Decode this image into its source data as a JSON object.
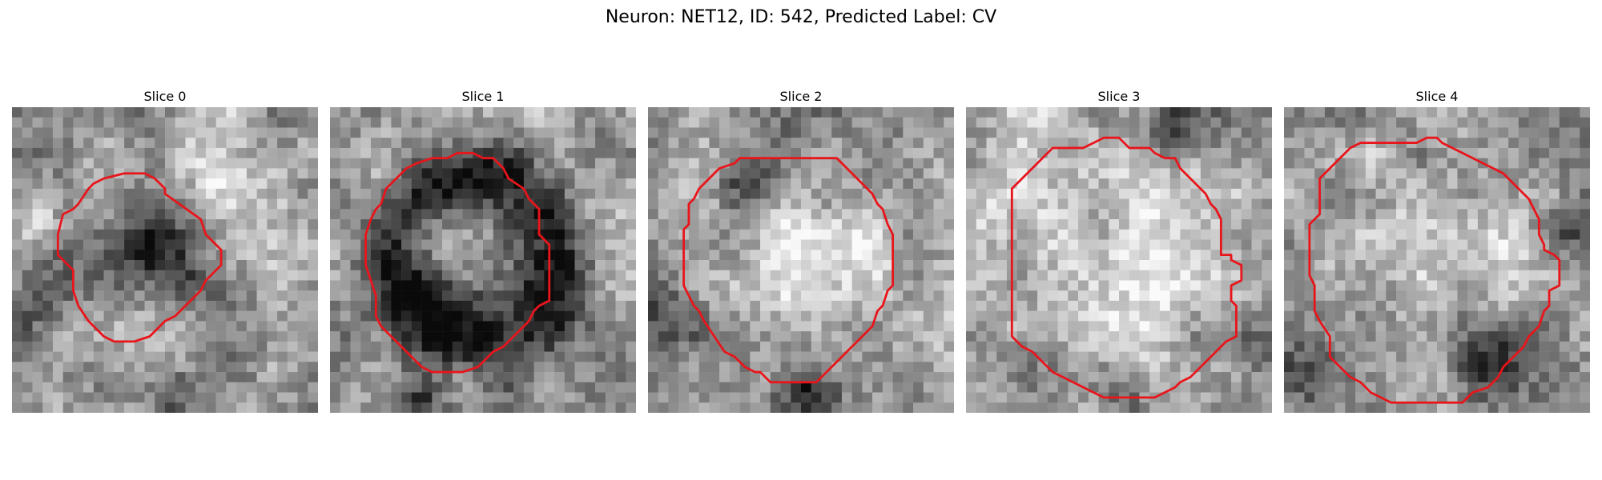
{
  "figure": {
    "title": "Neuron: NET12, ID: 542, Predicted Label: CV"
  },
  "panels": [
    {
      "title": "Slice 0",
      "contour_color": "#e8151b",
      "contour": [
        [
          15,
          8.5
        ],
        [
          18.5,
          11
        ],
        [
          19,
          12.5
        ],
        [
          20.5,
          14
        ],
        [
          20.5,
          15.5
        ],
        [
          19,
          17
        ],
        [
          18.5,
          18
        ],
        [
          17,
          19.5
        ],
        [
          16,
          20.5
        ],
        [
          15,
          21
        ],
        [
          13.5,
          22.5
        ],
        [
          12,
          23
        ],
        [
          10,
          23
        ],
        [
          9,
          22.5
        ],
        [
          8.5,
          22
        ],
        [
          7.5,
          21
        ],
        [
          6.5,
          19.5
        ],
        [
          6,
          18
        ],
        [
          6,
          16
        ],
        [
          5,
          15
        ],
        [
          4.5,
          14.5
        ],
        [
          4.5,
          12.5
        ],
        [
          5,
          10.5
        ],
        [
          6,
          10
        ],
        [
          6.5,
          9.5
        ],
        [
          7.5,
          8
        ],
        [
          8,
          7.5
        ],
        [
          9,
          7
        ],
        [
          11,
          6.5
        ],
        [
          13,
          6.5
        ],
        [
          14,
          7
        ],
        [
          15,
          8
        ]
      ],
      "texture": {
        "seed": 11,
        "dark_spots": [
          [
            13,
            14,
            3.6,
            0.42
          ]
        ],
        "light_spots": [
          [
            19,
            6,
            3,
            0.3
          ],
          [
            2,
            11,
            1.4,
            0.35
          ]
        ],
        "edge_dark": [
          [
            0,
            19,
            3,
            0.35
          ],
          [
            15,
            28,
            2,
            0.25
          ]
        ]
      }
    },
    {
      "title": "Slice 1",
      "contour_color": "#e8151b",
      "contour": [
        [
          13,
          4.5
        ],
        [
          14,
          4.5
        ],
        [
          15,
          5
        ],
        [
          16,
          5
        ],
        [
          17,
          6
        ],
        [
          17.5,
          7
        ],
        [
          19,
          8
        ],
        [
          19.5,
          9
        ],
        [
          20.5,
          10
        ],
        [
          20.5,
          12.5
        ],
        [
          21.5,
          13.5
        ],
        [
          21.5,
          19
        ],
        [
          20.5,
          19.5
        ],
        [
          20,
          20
        ],
        [
          19.5,
          21
        ],
        [
          18.5,
          22
        ],
        [
          17,
          23.5
        ],
        [
          16,
          24
        ],
        [
          15,
          25
        ],
        [
          14.5,
          25.5
        ],
        [
          13,
          26
        ],
        [
          12,
          26
        ],
        [
          10,
          26
        ],
        [
          9,
          25.5
        ],
        [
          8,
          24.5
        ],
        [
          7.5,
          24
        ],
        [
          6,
          22.5
        ],
        [
          5,
          21.5
        ],
        [
          4.5,
          20.5
        ],
        [
          4.5,
          18.5
        ],
        [
          4,
          17
        ],
        [
          3.5,
          15.5
        ],
        [
          3.5,
          12.5
        ],
        [
          4,
          11
        ],
        [
          4.5,
          10
        ],
        [
          5,
          9.5
        ],
        [
          5.5,
          8
        ],
        [
          6.5,
          7
        ],
        [
          7.5,
          6
        ],
        [
          8.5,
          5.5
        ],
        [
          10,
          5
        ],
        [
          11.5,
          5
        ],
        [
          12.5,
          4.5
        ]
      ],
      "texture": {
        "seed": 23,
        "ring": [
          14,
          14.5,
          8,
          2.4,
          0.45
        ],
        "dark_spots": [
          [
            12,
            19,
            3.5,
            0.35
          ]
        ],
        "light_spots": [
          [
            12,
            12,
            3,
            0.2
          ]
        ],
        "edge_dark": [
          [
            8,
            28,
            2,
            0.3
          ]
        ]
      }
    },
    {
      "title": "Slice 2",
      "contour_color": "#e8151b",
      "contour": [
        [
          18.5,
          5
        ],
        [
          19.5,
          6
        ],
        [
          20.5,
          7
        ],
        [
          22,
          8.5
        ],
        [
          22.5,
          9.5
        ],
        [
          23,
          10
        ],
        [
          23.5,
          11.5
        ],
        [
          24,
          12.5
        ],
        [
          24,
          17.5
        ],
        [
          23.5,
          18
        ],
        [
          23,
          19.5
        ],
        [
          22.5,
          20
        ],
        [
          22,
          21.5
        ],
        [
          21,
          22.5
        ],
        [
          20,
          23.5
        ],
        [
          19,
          24.5
        ],
        [
          18,
          25.5
        ],
        [
          17,
          26.5
        ],
        [
          16.5,
          27
        ],
        [
          12,
          27
        ],
        [
          11,
          26
        ],
        [
          10.5,
          26
        ],
        [
          9.5,
          25.5
        ],
        [
          8.5,
          24.5
        ],
        [
          7.5,
          24
        ],
        [
          6.5,
          22.5
        ],
        [
          5.5,
          21
        ],
        [
          5,
          20
        ],
        [
          4.5,
          19.5
        ],
        [
          4,
          18.5
        ],
        [
          3.5,
          17.5
        ],
        [
          3.5,
          12
        ],
        [
          4,
          11.5
        ],
        [
          4,
          9.5
        ],
        [
          4.5,
          9
        ],
        [
          5,
          8
        ],
        [
          6,
          7
        ],
        [
          7,
          6
        ],
        [
          8.5,
          5.5
        ],
        [
          9,
          5
        ],
        [
          10,
          5
        ]
      ],
      "texture": {
        "seed": 37,
        "dark_spots": [
          [
            15,
            27,
            2.2,
            0.55
          ],
          [
            9,
            7,
            2,
            0.35
          ]
        ],
        "light_spots": [
          [
            17,
            14,
            5,
            0.28
          ]
        ],
        "edge_dark": [
          [
            0,
            20,
            3,
            0.2
          ]
        ]
      }
    },
    {
      "title": "Slice 3",
      "contour_color": "#e8151b",
      "contour": [
        [
          14,
          3
        ],
        [
          15,
          3
        ],
        [
          15.5,
          3.5
        ],
        [
          16,
          4
        ],
        [
          18,
          4
        ],
        [
          18.5,
          4.5
        ],
        [
          19.5,
          5
        ],
        [
          20.5,
          5
        ],
        [
          21,
          6
        ],
        [
          22,
          7
        ],
        [
          23.5,
          8.5
        ],
        [
          24,
          9.5
        ],
        [
          24.5,
          10
        ],
        [
          25,
          11
        ],
        [
          25,
          14.5
        ],
        [
          26,
          14.5
        ],
        [
          26,
          15
        ],
        [
          27,
          15.5
        ],
        [
          27,
          17
        ],
        [
          26,
          17.5
        ],
        [
          26,
          19
        ],
        [
          26.5,
          19.5
        ],
        [
          26.5,
          20.5
        ],
        [
          26.5,
          22.5
        ],
        [
          25.5,
          23
        ],
        [
          25,
          23.5
        ],
        [
          24.5,
          24
        ],
        [
          24,
          24.5
        ],
        [
          23.5,
          25
        ],
        [
          22.5,
          26
        ],
        [
          22,
          26.5
        ],
        [
          21,
          27
        ],
        [
          20.5,
          27.5
        ],
        [
          19.5,
          28
        ],
        [
          18.5,
          28.5
        ],
        [
          13.5,
          28.5
        ],
        [
          12.5,
          28
        ],
        [
          11.5,
          27.5
        ],
        [
          10.5,
          27
        ],
        [
          9.5,
          26.5
        ],
        [
          8.5,
          26
        ],
        [
          7.5,
          25
        ],
        [
          6.5,
          24
        ],
        [
          5.5,
          23.5
        ],
        [
          4.5,
          22.5
        ],
        [
          4.5,
          20.5
        ],
        [
          4.5,
          15.5
        ],
        [
          4.5,
          12
        ],
        [
          4.5,
          8
        ],
        [
          5.5,
          7
        ],
        [
          6.5,
          6
        ],
        [
          7.5,
          5
        ],
        [
          8.5,
          4
        ],
        [
          11.5,
          4
        ],
        [
          12.5,
          3.5
        ],
        [
          13.5,
          3
        ]
      ],
      "texture": {
        "seed": 41,
        "dark_spots": [
          [
            20,
            2,
            2.2,
            0.45
          ],
          [
            15,
            28,
            2,
            0.35
          ]
        ],
        "light_spots": [
          [
            14,
            14,
            7,
            0.25
          ]
        ],
        "edge_dark": [
          [
            29,
            22,
            2.5,
            0.3
          ]
        ]
      }
    },
    {
      "title": "Slice 4",
      "contour_color": "#e8151b",
      "contour": [
        [
          14.5,
          3
        ],
        [
          15,
          3
        ],
        [
          15.5,
          3.5
        ],
        [
          16.5,
          4
        ],
        [
          17.5,
          4.5
        ],
        [
          18.5,
          5
        ],
        [
          19.5,
          5.5
        ],
        [
          21.5,
          6.5
        ],
        [
          22.5,
          7.5
        ],
        [
          23.5,
          8.5
        ],
        [
          24,
          9
        ],
        [
          24.5,
          10
        ],
        [
          25,
          11
        ],
        [
          25,
          12.5
        ],
        [
          25.5,
          13.5
        ],
        [
          25.5,
          14
        ],
        [
          26.5,
          14.5
        ],
        [
          27,
          15
        ],
        [
          27,
          17.5
        ],
        [
          26,
          18
        ],
        [
          26,
          19.5
        ],
        [
          25.5,
          20
        ],
        [
          25,
          21.5
        ],
        [
          24,
          22.5
        ],
        [
          23.5,
          23.5
        ],
        [
          22.5,
          24.5
        ],
        [
          21.5,
          25.5
        ],
        [
          21,
          26.5
        ],
        [
          20,
          27.5
        ],
        [
          18.5,
          28
        ],
        [
          17.5,
          29
        ],
        [
          10.5,
          29
        ],
        [
          9.5,
          28.5
        ],
        [
          8.5,
          28
        ],
        [
          7.5,
          27
        ],
        [
          6.5,
          26.5
        ],
        [
          5.5,
          25.5
        ],
        [
          4.5,
          24.5
        ],
        [
          4.5,
          22.5
        ],
        [
          3.5,
          21
        ],
        [
          3,
          20
        ],
        [
          3,
          17.5
        ],
        [
          2.5,
          16.5
        ],
        [
          2.5,
          11.5
        ],
        [
          3.5,
          10.5
        ],
        [
          3.5,
          7
        ],
        [
          4.5,
          6
        ],
        [
          5.5,
          5
        ],
        [
          6.5,
          4
        ],
        [
          7.5,
          3.5
        ],
        [
          13,
          3.5
        ],
        [
          14,
          3
        ]
      ],
      "texture": {
        "seed": 53,
        "dark_spots": [
          [
            20,
            25,
            2.5,
            0.55
          ],
          [
            27,
            11,
            2,
            0.35
          ]
        ],
        "light_spots": [
          [
            15,
            14,
            6,
            0.22
          ]
        ],
        "edge_dark": [
          [
            2,
            26,
            2,
            0.25
          ]
        ]
      }
    }
  ]
}
